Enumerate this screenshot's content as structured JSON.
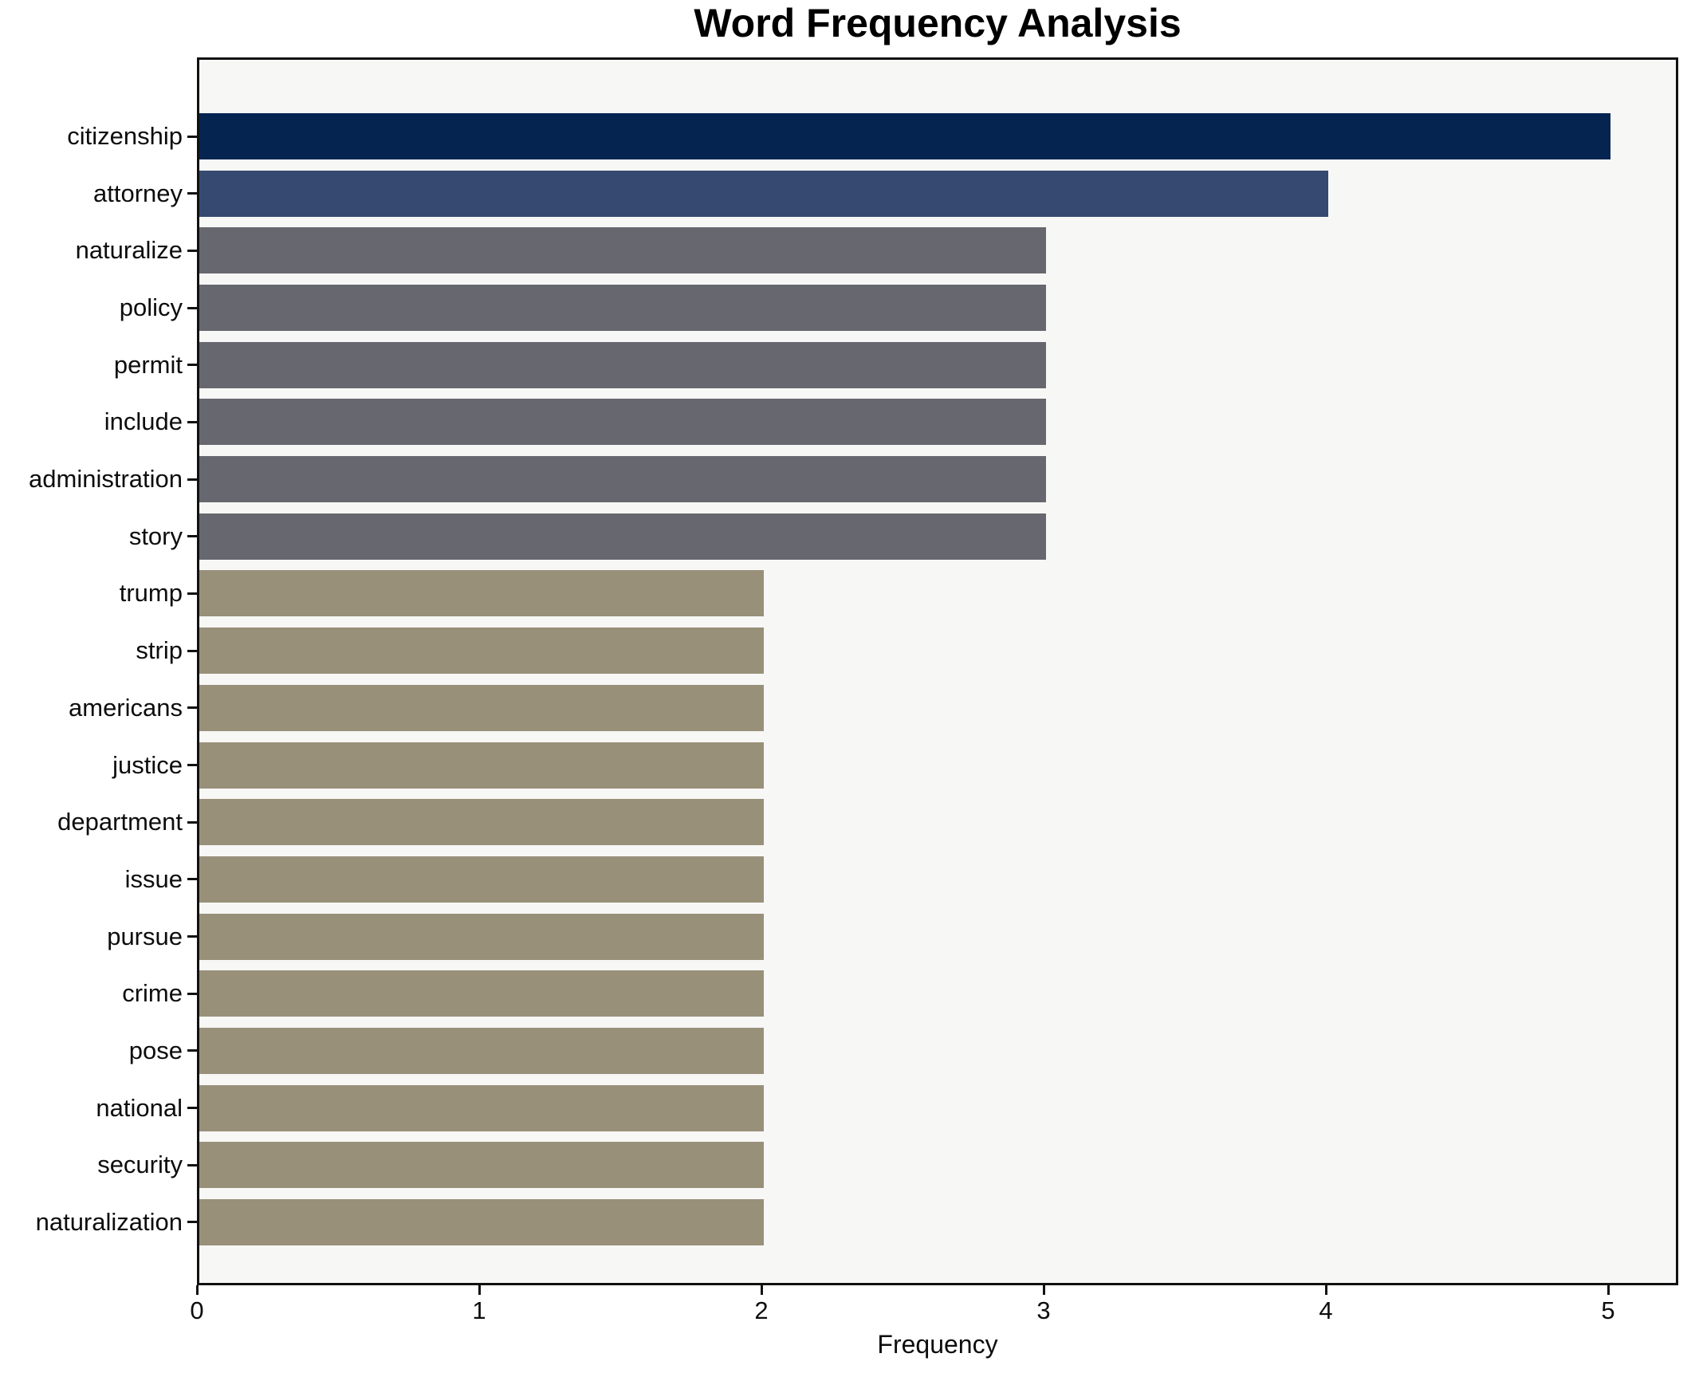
{
  "chart_data": {
    "type": "bar",
    "orientation": "horizontal",
    "title": "Word Frequency Analysis",
    "xlabel": "Frequency",
    "ylabel": "",
    "categories": [
      "citizenship",
      "attorney",
      "naturalize",
      "policy",
      "permit",
      "include",
      "administration",
      "story",
      "trump",
      "strip",
      "americans",
      "justice",
      "department",
      "issue",
      "pursue",
      "crime",
      "pose",
      "national",
      "security",
      "naturalization"
    ],
    "values": [
      5,
      4,
      3,
      3,
      3,
      3,
      3,
      3,
      2,
      2,
      2,
      2,
      2,
      2,
      2,
      2,
      2,
      2,
      2,
      2
    ],
    "xlim": [
      0,
      5.25
    ],
    "x_ticks": [
      0,
      1,
      2,
      3,
      4,
      5
    ],
    "grid": false,
    "colors_by_value": {
      "5": "#062450",
      "4": "#364a71",
      "3": "#67686f",
      "2": "#99907a"
    },
    "plot_background": "#f7f7f6",
    "figure_background": "#ffffff",
    "axis_color": "#111111",
    "text_color": "#0d0d0d"
  }
}
